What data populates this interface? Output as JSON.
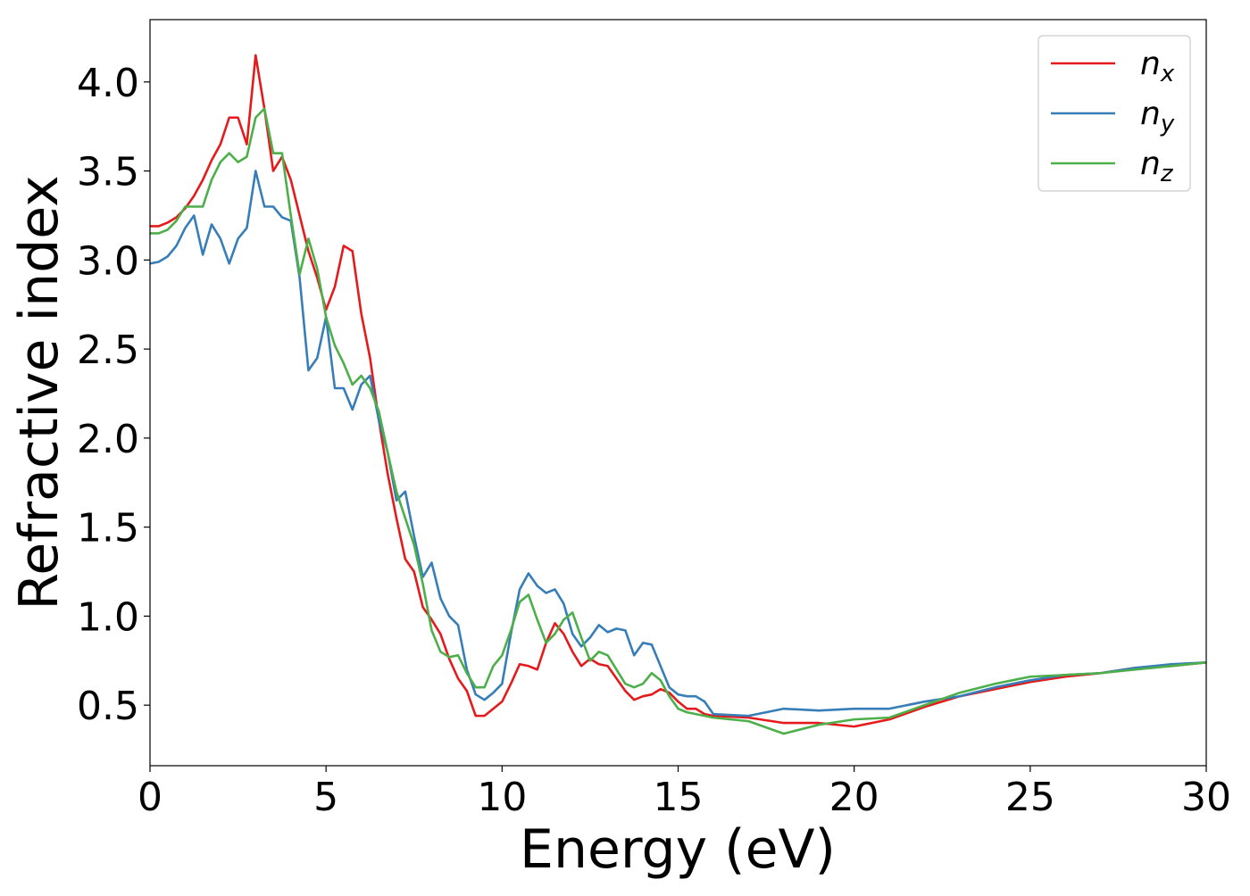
{
  "chart_data": {
    "type": "line",
    "xlabel": "Energy (eV)",
    "ylabel": "Refractive index",
    "x": [
      0,
      0.25,
      0.5,
      0.75,
      1,
      1.25,
      1.5,
      1.75,
      2,
      2.25,
      2.5,
      2.75,
      3,
      3.25,
      3.5,
      3.75,
      4,
      4.25,
      4.5,
      4.75,
      5,
      5.25,
      5.5,
      5.75,
      6,
      6.25,
      6.5,
      6.75,
      7,
      7.25,
      7.5,
      7.75,
      8,
      8.25,
      8.5,
      8.75,
      9,
      9.25,
      9.5,
      9.75,
      10,
      10.25,
      10.5,
      10.75,
      11,
      11.25,
      11.5,
      11.75,
      12,
      12.25,
      12.5,
      12.75,
      13,
      13.25,
      13.5,
      13.75,
      14,
      14.25,
      14.5,
      14.75,
      15,
      15.25,
      15.5,
      15.75,
      16,
      17,
      18,
      19,
      20,
      21,
      22,
      23,
      24,
      25,
      26,
      27,
      28,
      29,
      30
    ],
    "series": [
      {
        "name": "n_x",
        "color": "#e41a1c",
        "values": [
          3.19,
          3.19,
          3.21,
          3.24,
          3.29,
          3.36,
          3.45,
          3.56,
          3.65,
          3.8,
          3.8,
          3.65,
          4.15,
          3.85,
          3.5,
          3.58,
          3.45,
          3.25,
          3.05,
          2.9,
          2.72,
          2.85,
          3.08,
          3.05,
          2.7,
          2.45,
          2.1,
          1.8,
          1.55,
          1.32,
          1.25,
          1.05,
          0.98,
          0.9,
          0.76,
          0.65,
          0.58,
          0.44,
          0.44,
          0.48,
          0.52,
          0.62,
          0.73,
          0.72,
          0.7,
          0.85,
          0.96,
          0.9,
          0.8,
          0.72,
          0.76,
          0.73,
          0.72,
          0.65,
          0.58,
          0.53,
          0.55,
          0.56,
          0.59,
          0.57,
          0.52,
          0.48,
          0.48,
          0.45,
          0.44,
          0.43,
          0.4,
          0.4,
          0.38,
          0.42,
          0.49,
          0.55,
          0.59,
          0.63,
          0.66,
          0.68,
          0.71,
          0.72,
          0.74
        ]
      },
      {
        "name": "n_y",
        "color": "#377eb8",
        "values": [
          2.98,
          2.99,
          3.02,
          3.08,
          3.18,
          3.25,
          3.03,
          3.2,
          3.12,
          2.98,
          3.12,
          3.18,
          3.5,
          3.3,
          3.3,
          3.24,
          3.22,
          2.9,
          2.38,
          2.45,
          2.68,
          2.28,
          2.28,
          2.16,
          2.3,
          2.35,
          2.1,
          1.92,
          1.65,
          1.7,
          1.45,
          1.22,
          1.3,
          1.1,
          1.0,
          0.95,
          0.7,
          0.56,
          0.53,
          0.57,
          0.62,
          0.9,
          1.15,
          1.24,
          1.17,
          1.13,
          1.15,
          1.07,
          0.9,
          0.83,
          0.88,
          0.95,
          0.91,
          0.93,
          0.92,
          0.78,
          0.85,
          0.84,
          0.72,
          0.6,
          0.56,
          0.55,
          0.55,
          0.52,
          0.45,
          0.44,
          0.48,
          0.47,
          0.48,
          0.48,
          0.52,
          0.55,
          0.6,
          0.64,
          0.67,
          0.68,
          0.71,
          0.73,
          0.74
        ]
      },
      {
        "name": "n_z",
        "color": "#4daf4a",
        "values": [
          3.15,
          3.15,
          3.17,
          3.22,
          3.3,
          3.3,
          3.3,
          3.45,
          3.55,
          3.6,
          3.55,
          3.58,
          3.8,
          3.85,
          3.6,
          3.6,
          3.25,
          2.92,
          3.12,
          2.95,
          2.68,
          2.52,
          2.42,
          2.3,
          2.35,
          2.28,
          2.15,
          1.92,
          1.7,
          1.55,
          1.4,
          1.18,
          0.92,
          0.8,
          0.77,
          0.78,
          0.68,
          0.6,
          0.6,
          0.72,
          0.78,
          0.92,
          1.08,
          1.12,
          0.98,
          0.85,
          0.9,
          0.98,
          1.02,
          0.88,
          0.75,
          0.8,
          0.78,
          0.7,
          0.62,
          0.6,
          0.62,
          0.68,
          0.64,
          0.55,
          0.48,
          0.46,
          0.45,
          0.44,
          0.43,
          0.41,
          0.34,
          0.39,
          0.42,
          0.43,
          0.5,
          0.57,
          0.62,
          0.66,
          0.67,
          0.68,
          0.7,
          0.72,
          0.74
        ]
      }
    ],
    "xlim": [
      0,
      30
    ],
    "xticks": [
      0,
      5,
      10,
      15,
      20,
      25,
      30
    ],
    "ylim": [
      0.16,
      4.35
    ],
    "yticks": [
      0.5,
      {
        "value": 1.0,
        "label": "1.0"
      },
      1.5,
      {
        "value": 2.0,
        "label": "2.0"
      },
      2.5,
      {
        "value": 3.0,
        "label": "3.0"
      },
      3.5,
      {
        "value": 4.0,
        "label": "4.0"
      }
    ],
    "grid": false,
    "legend": "upper right"
  }
}
